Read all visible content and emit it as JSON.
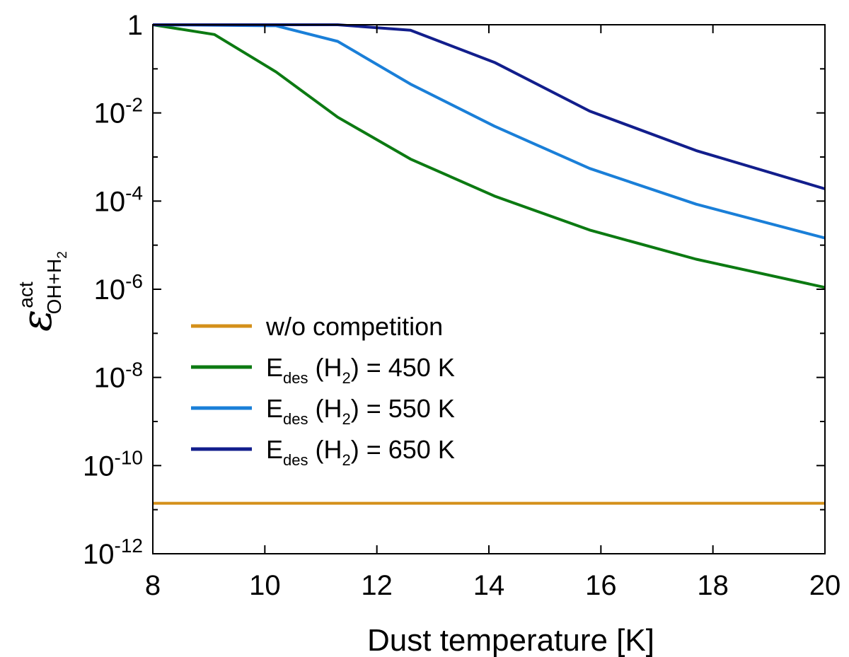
{
  "chart_data": {
    "type": "line",
    "xlabel": "Dust temperature [K]",
    "ylabel": {
      "symbol": "ε",
      "superscript": "act",
      "subscript": "OH+H",
      "subscript_sub": "2"
    },
    "xlim": [
      8,
      20
    ],
    "ylim": [
      1e-12,
      1
    ],
    "y_scale": "log",
    "x_ticks": [
      8,
      10,
      12,
      14,
      16,
      18,
      20
    ],
    "y_ticks": [
      {
        "value": 1,
        "base": "1",
        "exp": ""
      },
      {
        "value": 0.01,
        "base": "10",
        "exp": "-2"
      },
      {
        "value": 0.0001,
        "base": "10",
        "exp": "-4"
      },
      {
        "value": 1e-06,
        "base": "10",
        "exp": "-6"
      },
      {
        "value": 1e-08,
        "base": "10",
        "exp": "-8"
      },
      {
        "value": 1e-10,
        "base": "10",
        "exp": "-10"
      },
      {
        "value": 1e-12,
        "base": "10",
        "exp": "-12"
      }
    ],
    "legend_position": "middle-left",
    "series": [
      {
        "name": "w/o competition",
        "color": "#d4901a",
        "x": [
          8,
          20
        ],
        "y": [
          1.4e-11,
          1.4e-11
        ]
      },
      {
        "name": "E_des(H2) = 450 K",
        "legend": {
          "main": "E",
          "sub": "des",
          "mid": " (H",
          "sub2": "2",
          "tail": ") = 450 K"
        },
        "color": "#0c7a12",
        "x": [
          8,
          9.1,
          10.2,
          11.3,
          12.6,
          14.1,
          15.8,
          17.7,
          20
        ],
        "y": [
          1,
          0.6,
          0.085,
          0.008,
          0.0009,
          0.00013,
          2.2e-05,
          4.8e-06,
          1.1e-06
        ]
      },
      {
        "name": "E_des(H2) = 550 K",
        "legend": {
          "main": "E",
          "sub": "des",
          "mid": " (H",
          "sub2": "2",
          "tail": ") = 550 K"
        },
        "color": "#1a7fd8",
        "x": [
          8,
          10.2,
          11.3,
          12.6,
          14.1,
          15.8,
          17.7,
          20
        ],
        "y": [
          1,
          0.95,
          0.42,
          0.045,
          0.005,
          0.00055,
          8.5e-05,
          1.45e-05
        ]
      },
      {
        "name": "E_des(H2) = 650 K",
        "legend": {
          "main": "E",
          "sub": "des",
          "mid": " (H",
          "sub2": "2",
          "tail": ") = 650 K"
        },
        "color": "#121e8c",
        "x": [
          8,
          11.3,
          12.6,
          14.1,
          15.8,
          17.7,
          20
        ],
        "y": [
          1,
          1,
          0.75,
          0.14,
          0.011,
          0.0014,
          0.00019
        ]
      }
    ]
  },
  "colors": {
    "axis": "#000000",
    "background": "#ffffff"
  }
}
